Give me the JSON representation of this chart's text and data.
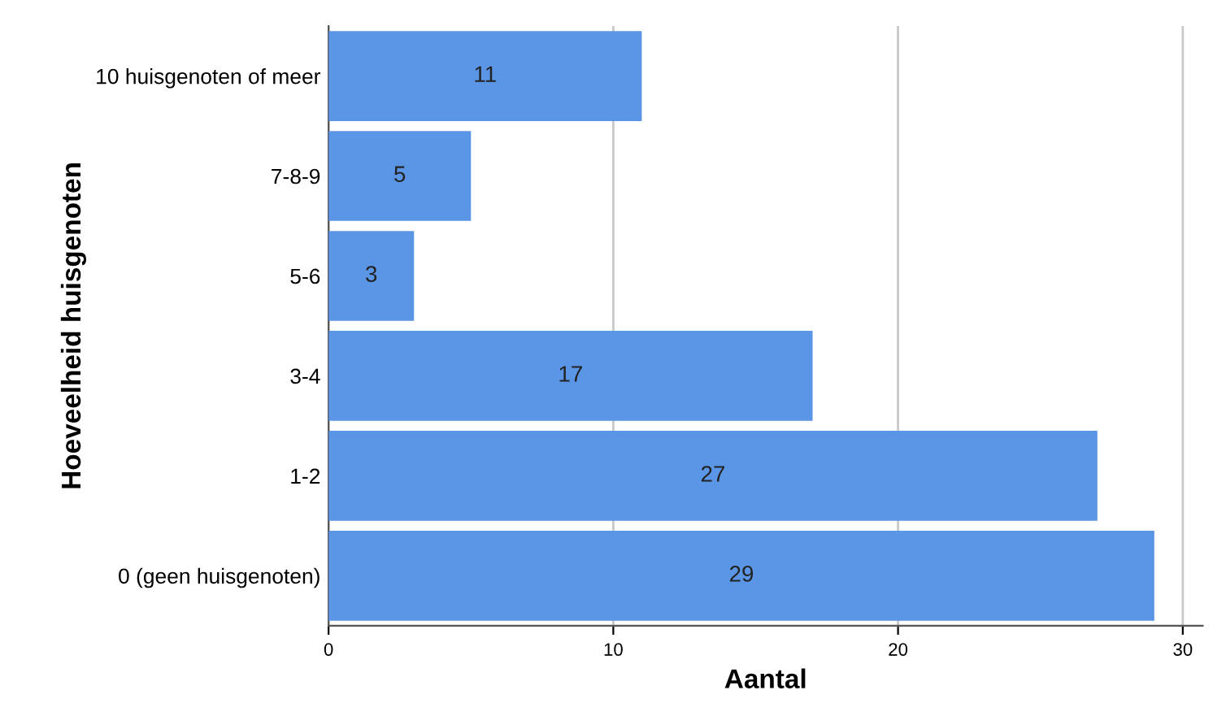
{
  "chart_data": {
    "type": "bar",
    "orientation": "horizontal",
    "xlabel": "Aantal",
    "ylabel": "Hoeveelheid huisgenoten",
    "categories": [
      "10 huisgenoten of meer",
      "7-8-9",
      "5-6",
      "3-4",
      "1-2",
      "0 (geen huisgenoten)"
    ],
    "values": [
      11,
      5,
      3,
      17,
      27,
      29
    ],
    "color": "#5b95e5",
    "xlim": [
      0,
      30.7
    ],
    "xticks": [
      0,
      10,
      20,
      30
    ],
    "grid": "x",
    "data_labels": true
  }
}
